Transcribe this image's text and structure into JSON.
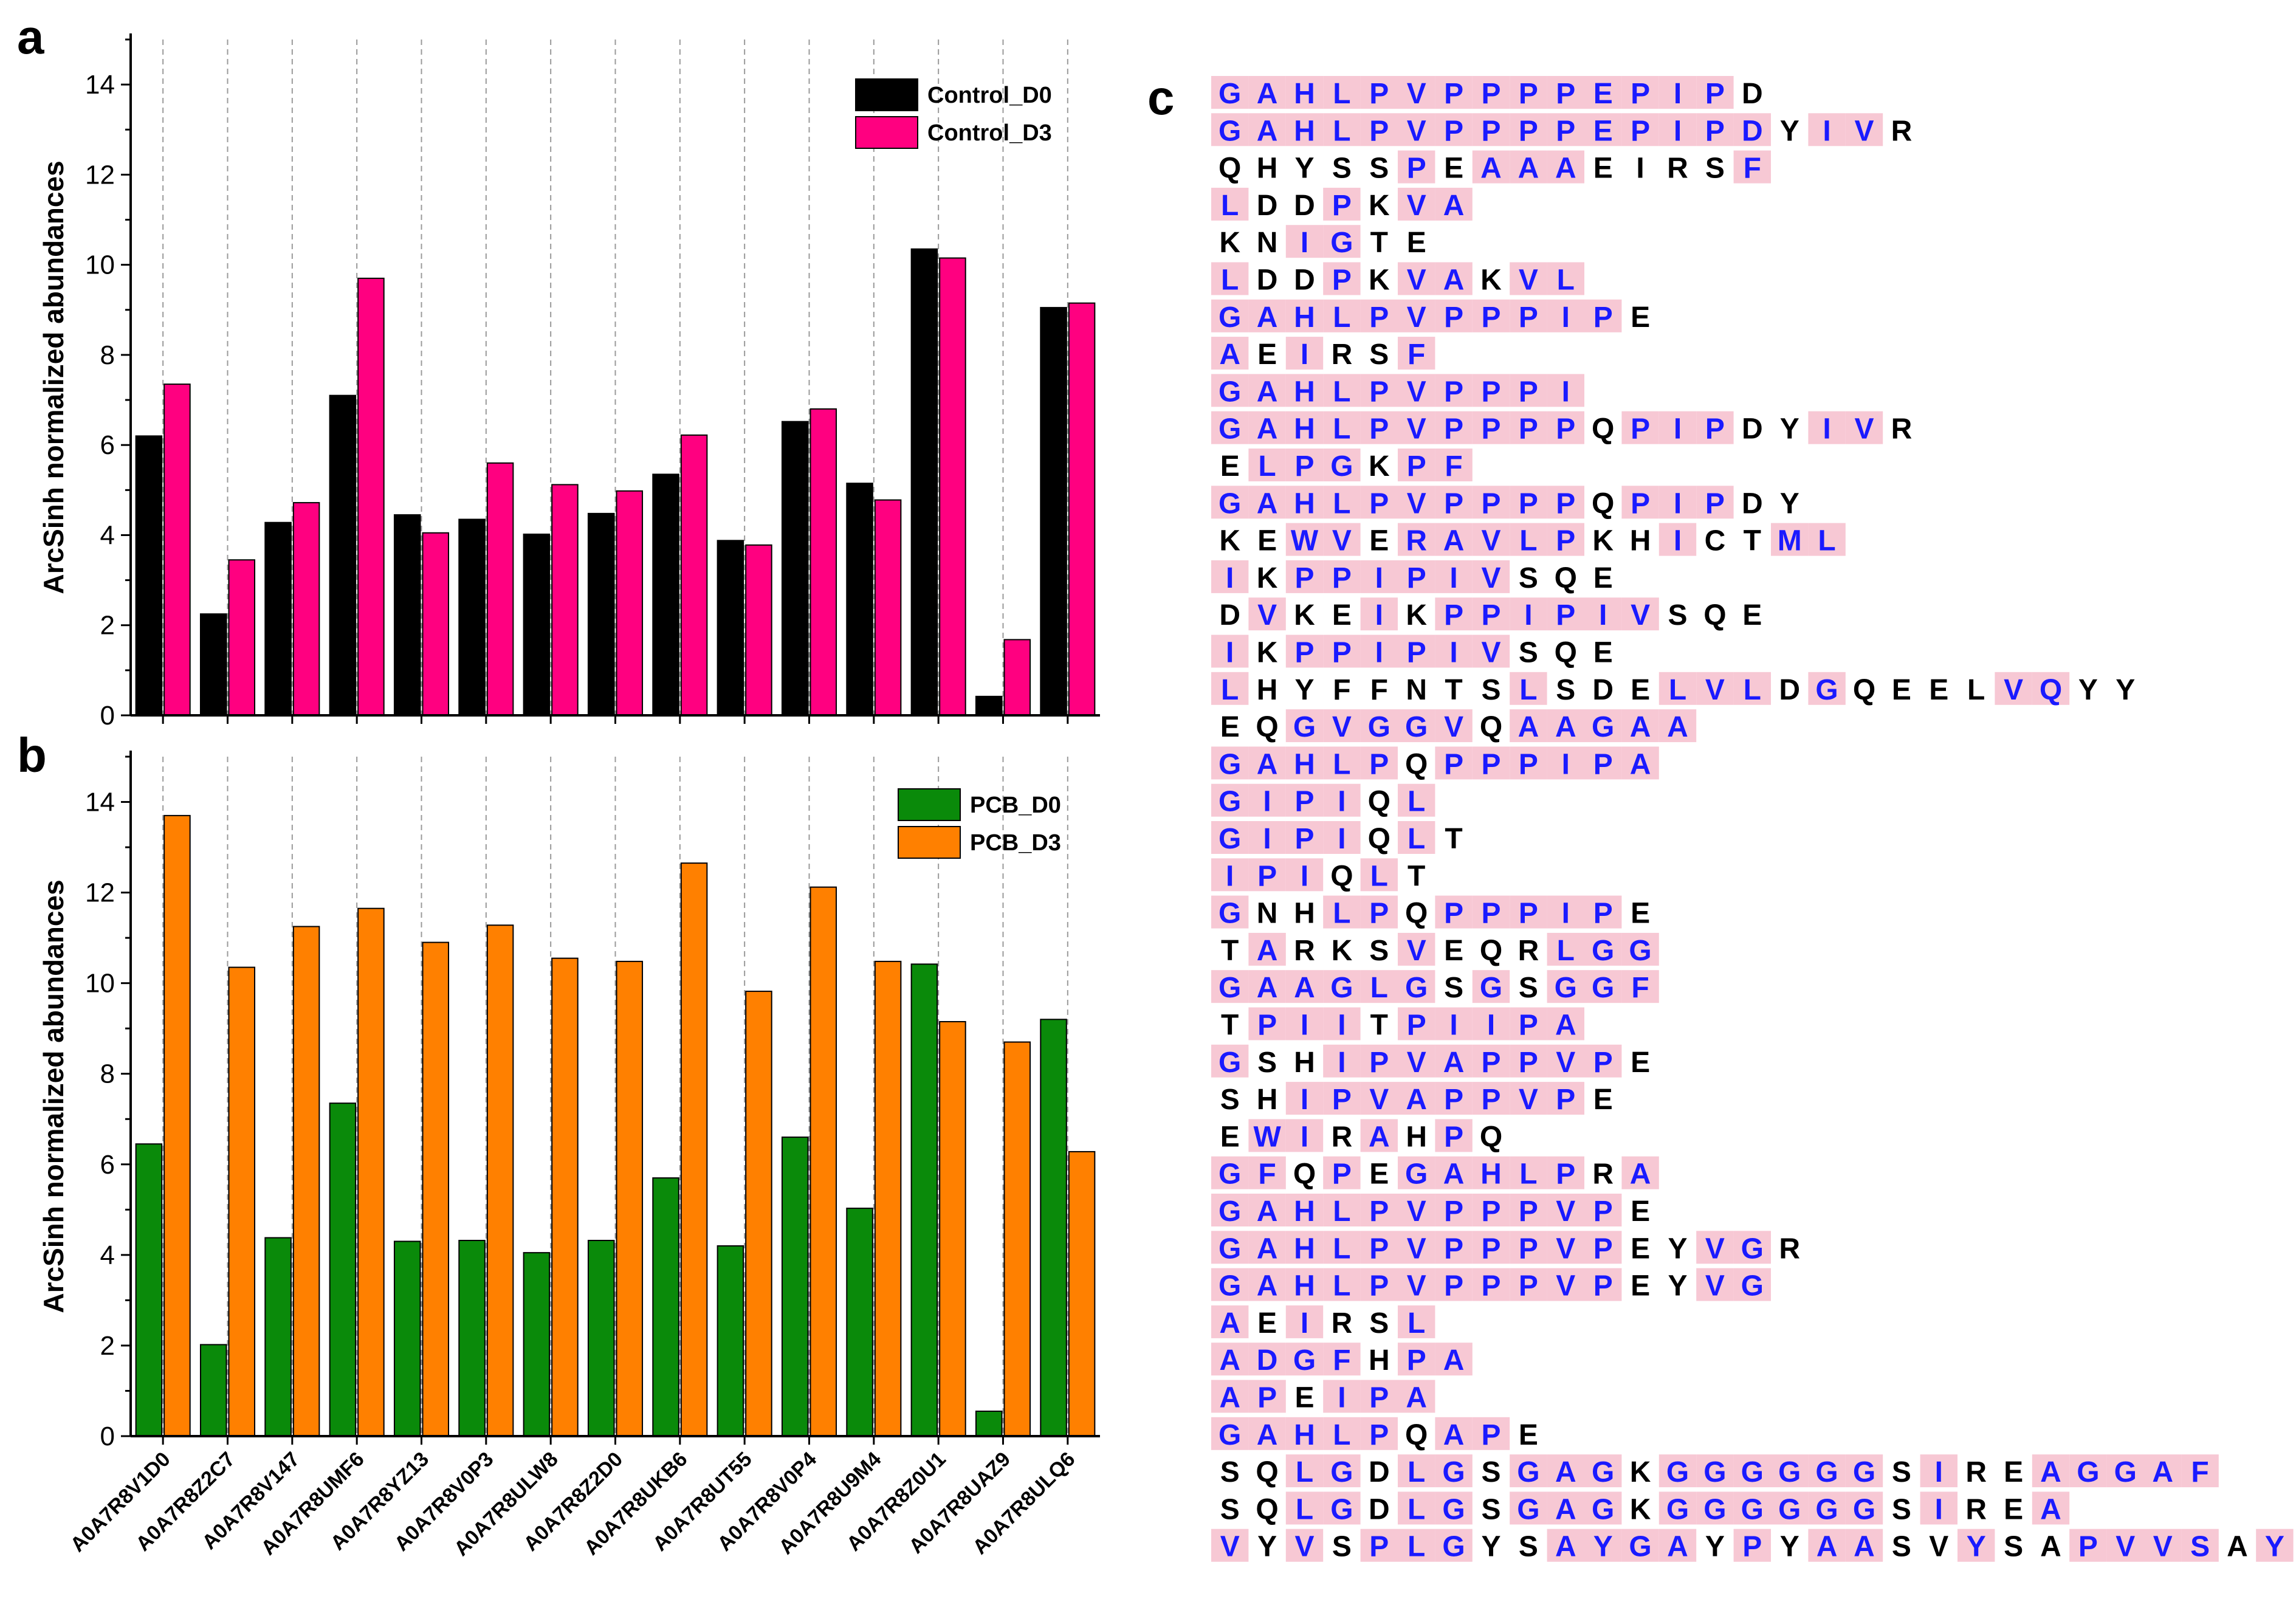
{
  "chart_data": [
    {
      "panel": "a",
      "type": "bar",
      "categories": [
        "A0A7R8V1D0",
        "A0A7R8Z2C7",
        "A0A7R8V147",
        "A0A7R8UMF6",
        "A0A7R8YZ13",
        "A0A7R8V0P3",
        "A0A7R8ULW8",
        "A0A7R8Z2D0",
        "A0A7R8UKB6",
        "A0A7R8UT55",
        "A0A7R8V0P4",
        "A0A7R8U9M4",
        "A0A7R8Z0U1",
        "A0A7R8UAZ9",
        "A0A7R8ULQ6"
      ],
      "series": [
        {
          "name": "Control_D0",
          "color": "#000000",
          "values": [
            6.2,
            2.25,
            4.28,
            7.1,
            4.45,
            4.35,
            4.02,
            4.48,
            5.35,
            3.88,
            6.52,
            5.15,
            10.35,
            0.42,
            9.05
          ]
        },
        {
          "name": "Control_D3",
          "color": "#ff0080",
          "values": [
            7.35,
            3.45,
            4.72,
            9.7,
            4.05,
            5.6,
            5.12,
            4.98,
            6.22,
            3.78,
            6.8,
            4.78,
            10.15,
            1.68,
            9.15
          ]
        }
      ],
      "title": "",
      "xlabel": "",
      "ylabel": "ArcSinh normalized abundances",
      "ylim": [
        0,
        15
      ],
      "yticks": [
        "0",
        "2",
        "4",
        "6",
        "8",
        "10",
        "12",
        "14"
      ],
      "legend_position": "top-right",
      "grid": "vertical dashed"
    },
    {
      "panel": "b",
      "type": "bar",
      "categories": [
        "A0A7R8V1D0",
        "A0A7R8Z2C7",
        "A0A7R8V147",
        "A0A7R8UMF6",
        "A0A7R8YZ13",
        "A0A7R8V0P3",
        "A0A7R8ULW8",
        "A0A7R8Z2D0",
        "A0A7R8UKB6",
        "A0A7R8UT55",
        "A0A7R8V0P4",
        "A0A7R8U9M4",
        "A0A7R8Z0U1",
        "A0A7R8UAZ9",
        "A0A7R8ULQ6"
      ],
      "series": [
        {
          "name": "PCB_D0",
          "color": "#0a8a0a",
          "values": [
            6.45,
            2.02,
            4.38,
            7.35,
            4.3,
            4.32,
            4.05,
            4.32,
            5.7,
            4.2,
            6.6,
            5.03,
            10.42,
            0.55,
            9.2
          ]
        },
        {
          "name": "PCB_D3",
          "color": "#ff8000",
          "values": [
            13.7,
            10.35,
            11.25,
            11.65,
            10.9,
            11.28,
            10.55,
            10.48,
            12.65,
            9.82,
            12.12,
            10.48,
            9.15,
            8.7,
            6.28
          ]
        }
      ],
      "title": "",
      "xlabel": "",
      "ylabel": "ArcSinh normalized abundances",
      "ylim": [
        0,
        15
      ],
      "yticks": [
        "0",
        "2",
        "4",
        "6",
        "8",
        "10",
        "12",
        "14"
      ],
      "legend_position": "top-right",
      "grid": "vertical dashed"
    }
  ],
  "panels": {
    "a": "a",
    "b": "b",
    "c": "c"
  },
  "colors": {
    "highlight_background": "#f7c8d4",
    "highlight_text": "#1a1aff",
    "plain_text": "#000000"
  },
  "sequences": {
    "panel": "c",
    "highlight_flags": "1 = highlighted residue (blue on pink), 0 = plain black residue",
    "rows": [
      {
        "residues": "GAHLPVPPPPEPIPD",
        "highlight": "111111111111110"
      },
      {
        "residues": "GAHLPVPPPPEPIPDYIVR",
        "highlight": "1111111111111110110"
      },
      {
        "residues": "QHYSSPEAAAEIRSF",
        "highlight": "000001011100001"
      },
      {
        "residues": "LDDPKVA",
        "highlight": "1001011"
      },
      {
        "residues": "KNIGTE",
        "highlight": "001100"
      },
      {
        "residues": "LDDPKVAKVL",
        "highlight": "1001011011"
      },
      {
        "residues": "GAHLPVPPPIPE",
        "highlight": "111111111110"
      },
      {
        "residues": "AEIRSF",
        "highlight": "101001"
      },
      {
        "residues": "GAHLPVPPPI",
        "highlight": "1111111111"
      },
      {
        "residues": "GAHLPVPPPPQPIPDYIVR",
        "highlight": "1111111111011100110"
      },
      {
        "residues": "ELPGKPF",
        "highlight": "0111011"
      },
      {
        "residues": "GAHLPVPPPPQPIPDY",
        "highlight": "1111111111011100"
      },
      {
        "residues": "KEWVERAVLPKHICTML",
        "highlight": "00110111110010011"
      },
      {
        "residues": "IKPPIPIVSQE",
        "highlight": "10111111000"
      },
      {
        "residues": "DVKEIKPPIPIVSQE",
        "highlight": "010010111111000"
      },
      {
        "residues": "IKPPIPIVSQE",
        "highlight": "10111111000"
      },
      {
        "residues": "LHYFFNTSLSDELVLDGQEELVQYY",
        "highlight": "1000000010001110100001100"
      },
      {
        "residues": "EQGVGGVQAAGAA",
        "highlight": "0011111011111"
      },
      {
        "residues": "GAHLPQPPPIPA",
        "highlight": "111110111111"
      },
      {
        "residues": "GIPIQL",
        "highlight": "111101"
      },
      {
        "residues": "GIPIQLT",
        "highlight": "1111010"
      },
      {
        "residues": "IPIQLT",
        "highlight": "111010"
      },
      {
        "residues": "GNHLPQPPPIPE",
        "highlight": "100110111110"
      },
      {
        "residues": "TARKSVEQRLGG",
        "highlight": "010001000111"
      },
      {
        "residues": "GAAGLGSGSGGF",
        "highlight": "111111010111"
      },
      {
        "residues": "TPIITPIIPA",
        "highlight": "0111011111"
      },
      {
        "residues": "GSHIPVAPPVPE",
        "highlight": "100111111110"
      },
      {
        "residues": "SHIPVAPPVPE",
        "highlight": "00111111110"
      },
      {
        "residues": "EWIRAHPQ",
        "highlight": "01101010"
      },
      {
        "residues": "GFQPEGAHLPRA",
        "highlight": "110101111101"
      },
      {
        "residues": "GAHLPVPPPVPE",
        "highlight": "111111111110"
      },
      {
        "residues": "GAHLPVPPPVPEYVGR",
        "highlight": "1111111111100110"
      },
      {
        "residues": "GAHLPVPPPVPEYVG",
        "highlight": "111111111110011"
      },
      {
        "residues": "AEIRSL",
        "highlight": "101001"
      },
      {
        "residues": "ADGFHPA",
        "highlight": "1111011"
      },
      {
        "residues": "APEIPA",
        "highlight": "110111"
      },
      {
        "residues": "GAHLPQAPE",
        "highlight": "111110110"
      },
      {
        "residues": "SQLGDLGSGAGKGGGGGGSIREAGGAF",
        "highlight": "001101101110111111010011111"
      },
      {
        "residues": "SQLGDLGSGAGKGGGGGGSIREA",
        "highlight": "00110110111011111101001"
      },
      {
        "residues": "VYVSPLGYSAYGAYPYAASVYSAPVVSAY",
        "highlight": "10101110011110101100100111101"
      }
    ]
  }
}
